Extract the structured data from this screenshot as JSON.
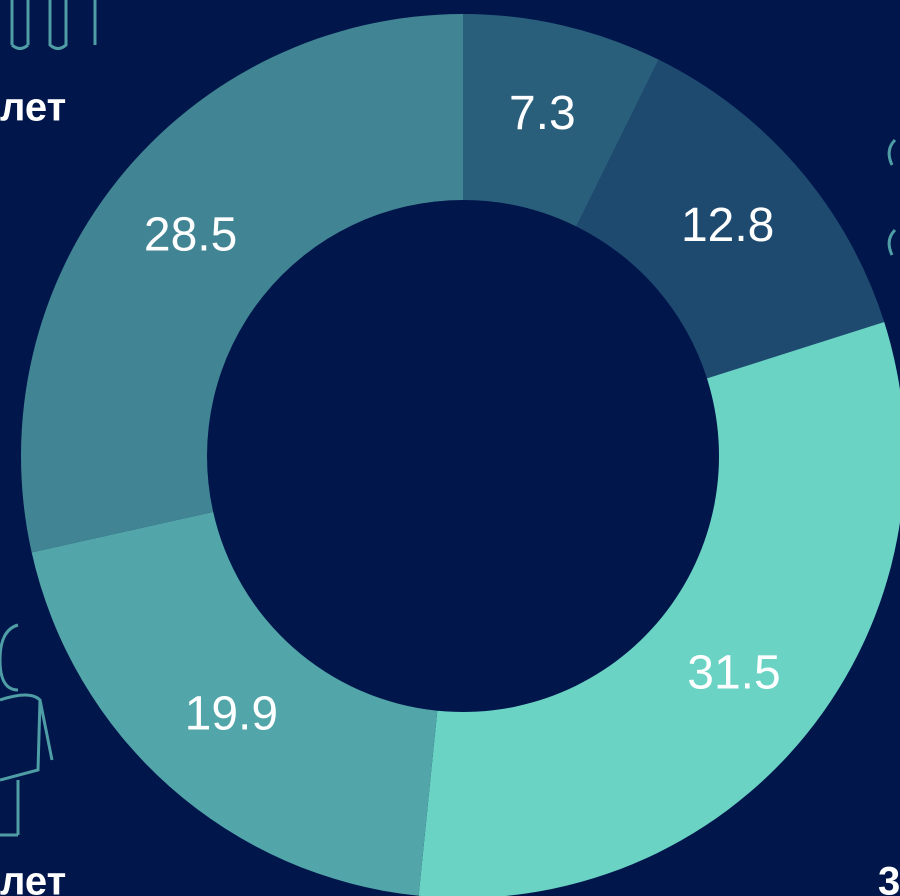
{
  "chart_data": {
    "type": "donut",
    "categories": [
      null,
      null,
      null,
      null,
      null
    ],
    "values": [
      7.3,
      12.8,
      31.5,
      19.9,
      28.5
    ],
    "colors": [
      "#2a5f7b",
      "#1f4a70",
      "#6ad3c4",
      "#52a5a9",
      "#418594"
    ],
    "annotations": [
      "лет",
      "лет",
      "3"
    ]
  }
}
